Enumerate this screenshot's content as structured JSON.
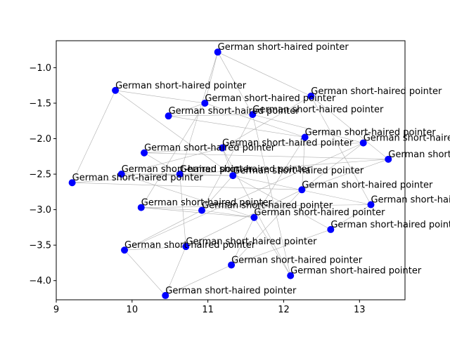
{
  "chart_data": {
    "type": "scatter",
    "title": "",
    "xlabel": "",
    "ylabel": "",
    "xlim": [
      9.0,
      13.6
    ],
    "ylim": [
      -4.27,
      -0.62
    ],
    "xticks": [
      9,
      10,
      11,
      12,
      13
    ],
    "yticks": [
      -1.0,
      -1.5,
      -2.0,
      -2.5,
      -3.0,
      -3.5,
      -4.0
    ],
    "grid": false,
    "legend": "none",
    "colors": {
      "point": "#0000ff",
      "edge": "#b0b0b0",
      "axis": "#000000"
    },
    "points": [
      {
        "label": "German short-haired pointer",
        "x": 11.13,
        "y": -0.78
      },
      {
        "label": "German short-haired pointer",
        "x": 9.78,
        "y": -1.32
      },
      {
        "label": "German short-haired pointer",
        "x": 10.96,
        "y": -1.5
      },
      {
        "label": "German short-haired pointer",
        "x": 12.36,
        "y": -1.4
      },
      {
        "label": "German short-haired pointer",
        "x": 10.48,
        "y": -1.68
      },
      {
        "label": "German short-haired pointer",
        "x": 11.59,
        "y": -1.66
      },
      {
        "label": "German short-haired pointer",
        "x": 12.28,
        "y": -1.98
      },
      {
        "label": "German short-haired pointer",
        "x": 13.05,
        "y": -2.06
      },
      {
        "label": "German short-haired pointer",
        "x": 11.19,
        "y": -2.13
      },
      {
        "label": "German short-haired pointer",
        "x": 10.16,
        "y": -2.2
      },
      {
        "label": "German short-haired pointer",
        "x": 13.38,
        "y": -2.29
      },
      {
        "label": "German short-haired pointer",
        "x": 9.86,
        "y": -2.5
      },
      {
        "label": "German short-haired pointer",
        "x": 10.63,
        "y": -2.5
      },
      {
        "label": "German short-haired pointer",
        "x": 11.33,
        "y": -2.52
      },
      {
        "label": "German short-haired pointer",
        "x": 9.21,
        "y": -2.62
      },
      {
        "label": "German short-haired pointer",
        "x": 12.24,
        "y": -2.72
      },
      {
        "label": "German short-haired pointer",
        "x": 13.15,
        "y": -2.93
      },
      {
        "label": "German short-haired pointer",
        "x": 10.12,
        "y": -2.97
      },
      {
        "label": "German short-haired pointer",
        "x": 10.92,
        "y": -3.01
      },
      {
        "label": "German short-haired pointer",
        "x": 11.61,
        "y": -3.11
      },
      {
        "label": "German short-haired pointer",
        "x": 12.62,
        "y": -3.28
      },
      {
        "label": "German short-haired pointer",
        "x": 10.71,
        "y": -3.52
      },
      {
        "label": "German short-haired pointer",
        "x": 9.9,
        "y": -3.57
      },
      {
        "label": "German short-haired pointer",
        "x": 11.31,
        "y": -3.78
      },
      {
        "label": "German short-haired pointer",
        "x": 12.09,
        "y": -3.93
      },
      {
        "label": "German short-haired pointer",
        "x": 10.44,
        "y": -4.21
      }
    ],
    "edges": [
      [
        0,
        2
      ],
      [
        0,
        5
      ],
      [
        0,
        3
      ],
      [
        0,
        12
      ],
      [
        1,
        2
      ],
      [
        1,
        14
      ],
      [
        1,
        13
      ],
      [
        2,
        4
      ],
      [
        2,
        6
      ],
      [
        2,
        17
      ],
      [
        3,
        8
      ],
      [
        3,
        10
      ],
      [
        3,
        16
      ],
      [
        4,
        6
      ],
      [
        4,
        5
      ],
      [
        5,
        7
      ],
      [
        5,
        18
      ],
      [
        6,
        19
      ],
      [
        6,
        15
      ],
      [
        7,
        8
      ],
      [
        7,
        22
      ],
      [
        7,
        15
      ],
      [
        8,
        9
      ],
      [
        8,
        11
      ],
      [
        8,
        13
      ],
      [
        8,
        24
      ],
      [
        9,
        10
      ],
      [
        9,
        12
      ],
      [
        10,
        14
      ],
      [
        10,
        15
      ],
      [
        11,
        12
      ],
      [
        11,
        13
      ],
      [
        11,
        19
      ],
      [
        12,
        21
      ],
      [
        12,
        13
      ],
      [
        13,
        20
      ],
      [
        13,
        18
      ],
      [
        13,
        16
      ],
      [
        14,
        15
      ],
      [
        15,
        21
      ],
      [
        15,
        23
      ],
      [
        16,
        17
      ],
      [
        16,
        20
      ],
      [
        17,
        19
      ],
      [
        17,
        18
      ],
      [
        18,
        19
      ],
      [
        18,
        22
      ],
      [
        19,
        24
      ],
      [
        19,
        23
      ],
      [
        20,
        23
      ],
      [
        21,
        22
      ],
      [
        21,
        25
      ],
      [
        22,
        25
      ],
      [
        23,
        25
      ],
      [
        24,
        5
      ]
    ]
  }
}
